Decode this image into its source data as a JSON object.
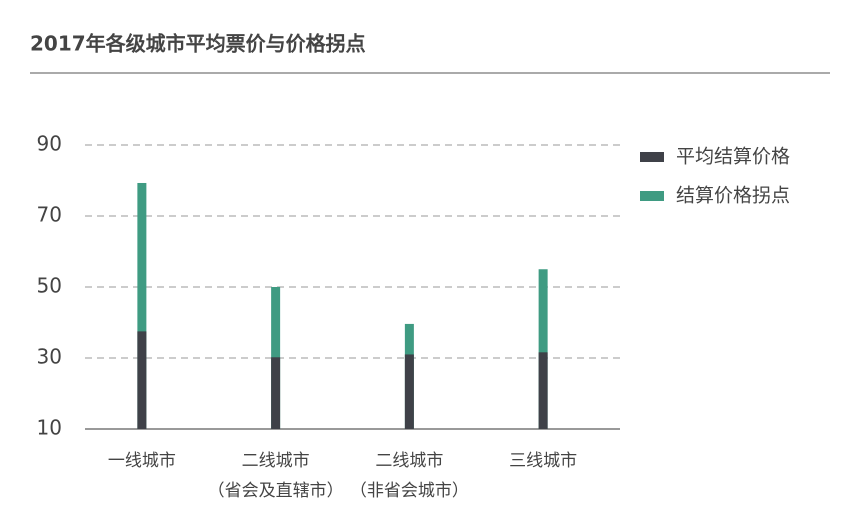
{
  "chart_data": {
    "type": "bar",
    "title": "2017年各级城市平均票价与价格拐点",
    "categories": [
      [
        "一线城市"
      ],
      [
        "二线城市",
        "（省会及直辖市）"
      ],
      [
        "二线城市",
        "（非省会城市）"
      ],
      [
        "三线城市"
      ]
    ],
    "series": [
      {
        "name": "平均结算价格",
        "color": "#3f4148",
        "values": [
          37.5,
          30.2,
          31,
          31.6
        ]
      },
      {
        "name": "结算价格拐点",
        "color": "#3f9b82",
        "values": [
          79.3,
          50,
          39.6,
          55
        ]
      }
    ],
    "ylim": [
      10,
      90
    ],
    "yticks": [
      10,
      30,
      50,
      70,
      90
    ],
    "grid": true,
    "legend": "right"
  }
}
